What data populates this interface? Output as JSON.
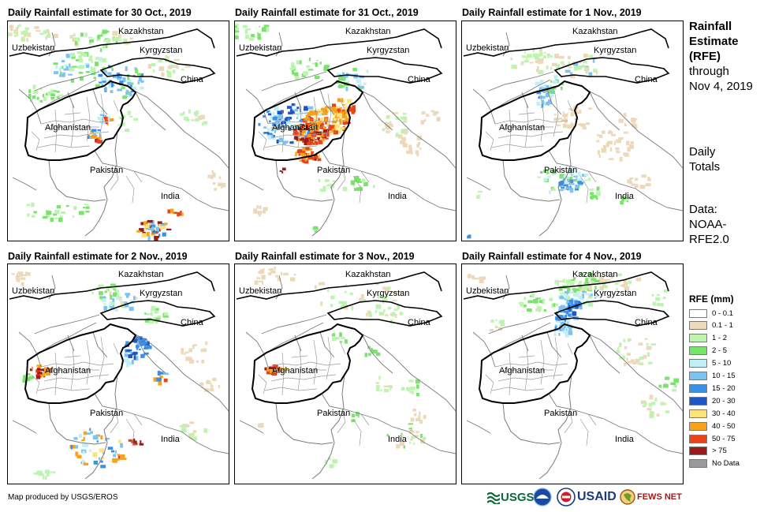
{
  "panels": [
    {
      "title": "Daily Rainfall estimate for 30 Oct., 2019"
    },
    {
      "title": "Daily Rainfall estimate for 31 Oct., 2019"
    },
    {
      "title": "Daily Rainfall estimate for 1 Nov., 2019"
    },
    {
      "title": "Daily Rainfall estimate for 2 Nov., 2019"
    },
    {
      "title": "Daily Rainfall estimate for 3 Nov., 2019"
    },
    {
      "title": "Daily Rainfall estimate for 4 Nov., 2019"
    }
  ],
  "map_labels": {
    "kazakhstan": "Kazakhstan",
    "uzbekistan": "Uzbekistan",
    "kyrgyzstan": "Kyrgyzstan",
    "china": "China",
    "afghanistan": "Afghanistan",
    "pakistan": "Pakistan",
    "india": "India"
  },
  "sidebar": {
    "heading_line1": "Rainfall",
    "heading_line2": "Estimate",
    "heading_line3": "(RFE)",
    "through": "through",
    "date": "Nov 4, 2019",
    "daily1": "Daily",
    "daily2": "Totals",
    "data1": "Data:",
    "data2": "NOAA-",
    "data3": "RFE2.0"
  },
  "legend": {
    "title": "RFE (mm)",
    "items": [
      {
        "label": "0 - 0.1",
        "color": "#ffffff"
      },
      {
        "label": "0.1 - 1",
        "color": "#ecd9b9"
      },
      {
        "label": "1 - 2",
        "color": "#bdf5b0"
      },
      {
        "label": "2 - 5",
        "color": "#7ae36b"
      },
      {
        "label": "5 - 10",
        "color": "#bfeff7"
      },
      {
        "label": "10 - 15",
        "color": "#7ec2ef"
      },
      {
        "label": "15 - 20",
        "color": "#3c8fe6"
      },
      {
        "label": "20 - 30",
        "color": "#1f55c9"
      },
      {
        "label": "30 - 40",
        "color": "#fde37c"
      },
      {
        "label": "40 - 50",
        "color": "#f7a21b"
      },
      {
        "label": "50 - 75",
        "color": "#e8421a"
      },
      {
        "label": "> 75",
        "color": "#9e1a1a"
      },
      {
        "label": "No Data",
        "color": "#9a9a9a"
      }
    ]
  },
  "footer": {
    "credit": "Map produced by USGS/EROS",
    "logo_usgs": "USGS",
    "logo_usaid": "USAID",
    "logo_fewsnet": "FEWS NET"
  }
}
